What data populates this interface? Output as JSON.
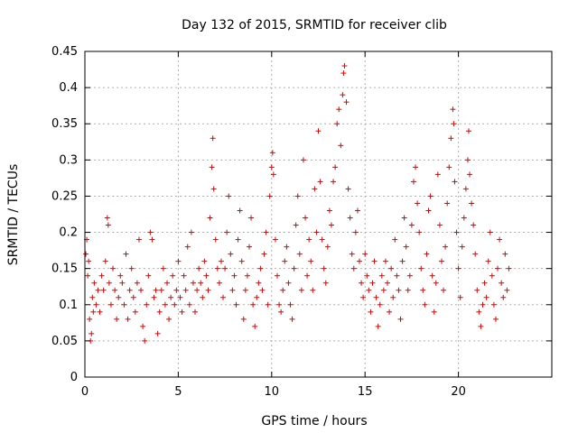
{
  "chart_data": {
    "type": "scatter",
    "title": "Day 132 of 2015, SRMTID for receiver clib",
    "xlabel": "GPS time / hours",
    "ylabel": "SRMTID / TECUs",
    "xlim": [
      0,
      25
    ],
    "ylim": [
      0,
      0.45
    ],
    "xticks": [
      "0",
      "5",
      "10",
      "15",
      "20"
    ],
    "xtick_values": [
      0,
      5,
      10,
      15,
      20
    ],
    "yticks": [
      "0",
      "0.05",
      "0.1",
      "0.15",
      "0.2",
      "0.25",
      "0.3",
      "0.35",
      "0.4",
      "0.45"
    ],
    "ytick_values": [
      0,
      0.05,
      0.1,
      0.15,
      0.2,
      0.25,
      0.3,
      0.35,
      0.4,
      0.45
    ],
    "grid": true,
    "marker": "+",
    "color": "#e00000",
    "series": [
      {
        "name": "",
        "points": [
          [
            0.05,
            0.17
          ],
          [
            0.1,
            0.19
          ],
          [
            0.15,
            0.14
          ],
          [
            0.2,
            0.16
          ],
          [
            0.25,
            0.08
          ],
          [
            0.3,
            0.05
          ],
          [
            0.35,
            0.06
          ],
          [
            0.4,
            0.11
          ],
          [
            0.45,
            0.09
          ],
          [
            0.5,
            0.13
          ],
          [
            0.6,
            0.1
          ],
          [
            0.7,
            0.12
          ],
          [
            0.8,
            0.09
          ],
          [
            0.9,
            0.14
          ],
          [
            1.0,
            0.12
          ],
          [
            1.1,
            0.16
          ],
          [
            1.2,
            0.22
          ],
          [
            1.25,
            0.21
          ],
          [
            1.3,
            0.13
          ],
          [
            1.4,
            0.1
          ],
          [
            1.5,
            0.15
          ],
          [
            1.6,
            0.12
          ],
          [
            1.7,
            0.08
          ],
          [
            1.8,
            0.11
          ],
          [
            1.9,
            0.14
          ],
          [
            2.0,
            0.13
          ],
          [
            2.1,
            0.1
          ],
          [
            2.2,
            0.17
          ],
          [
            2.3,
            0.08
          ],
          [
            2.4,
            0.12
          ],
          [
            2.5,
            0.15
          ],
          [
            2.6,
            0.11
          ],
          [
            2.7,
            0.09
          ],
          [
            2.8,
            0.13
          ],
          [
            2.9,
            0.19
          ],
          [
            3.0,
            0.12
          ],
          [
            3.1,
            0.07
          ],
          [
            3.2,
            0.05
          ],
          [
            3.3,
            0.1
          ],
          [
            3.4,
            0.14
          ],
          [
            3.5,
            0.2
          ],
          [
            3.6,
            0.19
          ],
          [
            3.7,
            0.11
          ],
          [
            3.8,
            0.12
          ],
          [
            3.9,
            0.06
          ],
          [
            4.0,
            0.09
          ],
          [
            4.1,
            0.12
          ],
          [
            4.2,
            0.15
          ],
          [
            4.3,
            0.1
          ],
          [
            4.4,
            0.13
          ],
          [
            4.5,
            0.08
          ],
          [
            4.6,
            0.11
          ],
          [
            4.7,
            0.14
          ],
          [
            4.8,
            0.1
          ],
          [
            4.9,
            0.12
          ],
          [
            5.0,
            0.16
          ],
          [
            5.1,
            0.11
          ],
          [
            5.2,
            0.09
          ],
          [
            5.3,
            0.14
          ],
          [
            5.4,
            0.12
          ],
          [
            5.5,
            0.18
          ],
          [
            5.6,
            0.1
          ],
          [
            5.7,
            0.2
          ],
          [
            5.8,
            0.13
          ],
          [
            5.9,
            0.09
          ],
          [
            6.0,
            0.12
          ],
          [
            6.1,
            0.15
          ],
          [
            6.2,
            0.13
          ],
          [
            6.3,
            0.11
          ],
          [
            6.4,
            0.16
          ],
          [
            6.5,
            0.14
          ],
          [
            6.6,
            0.12
          ],
          [
            6.7,
            0.22
          ],
          [
            6.8,
            0.29
          ],
          [
            6.85,
            0.33
          ],
          [
            6.9,
            0.26
          ],
          [
            7.0,
            0.19
          ],
          [
            7.1,
            0.15
          ],
          [
            7.2,
            0.13
          ],
          [
            7.3,
            0.16
          ],
          [
            7.4,
            0.11
          ],
          [
            7.5,
            0.15
          ],
          [
            7.6,
            0.2
          ],
          [
            7.7,
            0.25
          ],
          [
            7.8,
            0.17
          ],
          [
            7.9,
            0.12
          ],
          [
            8.0,
            0.14
          ],
          [
            8.1,
            0.1
          ],
          [
            8.2,
            0.19
          ],
          [
            8.3,
            0.23
          ],
          [
            8.4,
            0.16
          ],
          [
            8.5,
            0.08
          ],
          [
            8.6,
            0.12
          ],
          [
            8.7,
            0.14
          ],
          [
            8.8,
            0.18
          ],
          [
            8.9,
            0.22
          ],
          [
            9.0,
            0.1
          ],
          [
            9.1,
            0.07
          ],
          [
            9.2,
            0.11
          ],
          [
            9.3,
            0.13
          ],
          [
            9.4,
            0.15
          ],
          [
            9.5,
            0.12
          ],
          [
            9.6,
            0.17
          ],
          [
            9.7,
            0.2
          ],
          [
            9.8,
            0.1
          ],
          [
            9.9,
            0.25
          ],
          [
            10.0,
            0.29
          ],
          [
            10.05,
            0.31
          ],
          [
            10.1,
            0.28
          ],
          [
            10.2,
            0.19
          ],
          [
            10.3,
            0.14
          ],
          [
            10.4,
            0.1
          ],
          [
            10.5,
            0.09
          ],
          [
            10.6,
            0.12
          ],
          [
            10.7,
            0.16
          ],
          [
            10.8,
            0.18
          ],
          [
            10.9,
            0.13
          ],
          [
            11.0,
            0.1
          ],
          [
            11.1,
            0.08
          ],
          [
            11.2,
            0.15
          ],
          [
            11.3,
            0.21
          ],
          [
            11.4,
            0.25
          ],
          [
            11.5,
            0.17
          ],
          [
            11.6,
            0.12
          ],
          [
            11.7,
            0.3
          ],
          [
            11.8,
            0.22
          ],
          [
            11.9,
            0.14
          ],
          [
            12.0,
            0.19
          ],
          [
            12.1,
            0.16
          ],
          [
            12.2,
            0.12
          ],
          [
            12.3,
            0.26
          ],
          [
            12.4,
            0.2
          ],
          [
            12.5,
            0.34
          ],
          [
            12.6,
            0.27
          ],
          [
            12.7,
            0.19
          ],
          [
            12.8,
            0.15
          ],
          [
            12.9,
            0.13
          ],
          [
            13.0,
            0.18
          ],
          [
            13.1,
            0.23
          ],
          [
            13.2,
            0.21
          ],
          [
            13.3,
            0.27
          ],
          [
            13.4,
            0.29
          ],
          [
            13.5,
            0.35
          ],
          [
            13.6,
            0.37
          ],
          [
            13.7,
            0.32
          ],
          [
            13.8,
            0.39
          ],
          [
            13.85,
            0.42
          ],
          [
            13.9,
            0.43
          ],
          [
            14.0,
            0.38
          ],
          [
            14.1,
            0.26
          ],
          [
            14.2,
            0.22
          ],
          [
            14.3,
            0.17
          ],
          [
            14.4,
            0.15
          ],
          [
            14.5,
            0.2
          ],
          [
            14.6,
            0.23
          ],
          [
            14.7,
            0.16
          ],
          [
            14.8,
            0.13
          ],
          [
            14.9,
            0.11
          ],
          [
            15.0,
            0.17
          ],
          [
            15.1,
            0.14
          ],
          [
            15.2,
            0.12
          ],
          [
            15.3,
            0.09
          ],
          [
            15.4,
            0.13
          ],
          [
            15.5,
            0.16
          ],
          [
            15.6,
            0.11
          ],
          [
            15.7,
            0.07
          ],
          [
            15.8,
            0.1
          ],
          [
            15.9,
            0.14
          ],
          [
            16.0,
            0.12
          ],
          [
            16.1,
            0.16
          ],
          [
            16.2,
            0.13
          ],
          [
            16.3,
            0.09
          ],
          [
            16.4,
            0.15
          ],
          [
            16.5,
            0.11
          ],
          [
            16.6,
            0.19
          ],
          [
            16.7,
            0.14
          ],
          [
            16.8,
            0.12
          ],
          [
            16.9,
            0.08
          ],
          [
            17.0,
            0.16
          ],
          [
            17.1,
            0.22
          ],
          [
            17.2,
            0.18
          ],
          [
            17.3,
            0.12
          ],
          [
            17.4,
            0.14
          ],
          [
            17.5,
            0.21
          ],
          [
            17.6,
            0.27
          ],
          [
            17.7,
            0.29
          ],
          [
            17.8,
            0.24
          ],
          [
            17.9,
            0.2
          ],
          [
            18.0,
            0.15
          ],
          [
            18.1,
            0.12
          ],
          [
            18.2,
            0.1
          ],
          [
            18.3,
            0.17
          ],
          [
            18.4,
            0.23
          ],
          [
            18.5,
            0.25
          ],
          [
            18.6,
            0.14
          ],
          [
            18.7,
            0.09
          ],
          [
            18.8,
            0.13
          ],
          [
            18.9,
            0.28
          ],
          [
            19.0,
            0.21
          ],
          [
            19.1,
            0.16
          ],
          [
            19.2,
            0.12
          ],
          [
            19.3,
            0.18
          ],
          [
            19.4,
            0.24
          ],
          [
            19.5,
            0.29
          ],
          [
            19.6,
            0.33
          ],
          [
            19.7,
            0.37
          ],
          [
            19.75,
            0.35
          ],
          [
            19.8,
            0.27
          ],
          [
            19.9,
            0.2
          ],
          [
            20.0,
            0.15
          ],
          [
            20.1,
            0.11
          ],
          [
            20.2,
            0.18
          ],
          [
            20.3,
            0.22
          ],
          [
            20.4,
            0.26
          ],
          [
            20.5,
            0.3
          ],
          [
            20.55,
            0.34
          ],
          [
            20.6,
            0.28
          ],
          [
            20.7,
            0.24
          ],
          [
            20.8,
            0.21
          ],
          [
            20.9,
            0.17
          ],
          [
            21.0,
            0.12
          ],
          [
            21.1,
            0.09
          ],
          [
            21.2,
            0.07
          ],
          [
            21.3,
            0.1
          ],
          [
            21.4,
            0.13
          ],
          [
            21.5,
            0.11
          ],
          [
            21.6,
            0.16
          ],
          [
            21.7,
            0.2
          ],
          [
            21.8,
            0.14
          ],
          [
            21.9,
            0.1
          ],
          [
            22.0,
            0.08
          ],
          [
            22.1,
            0.15
          ],
          [
            22.2,
            0.19
          ],
          [
            22.3,
            0.13
          ],
          [
            22.4,
            0.11
          ],
          [
            22.5,
            0.17
          ],
          [
            22.6,
            0.12
          ],
          [
            22.7,
            0.15
          ]
        ]
      }
    ]
  }
}
